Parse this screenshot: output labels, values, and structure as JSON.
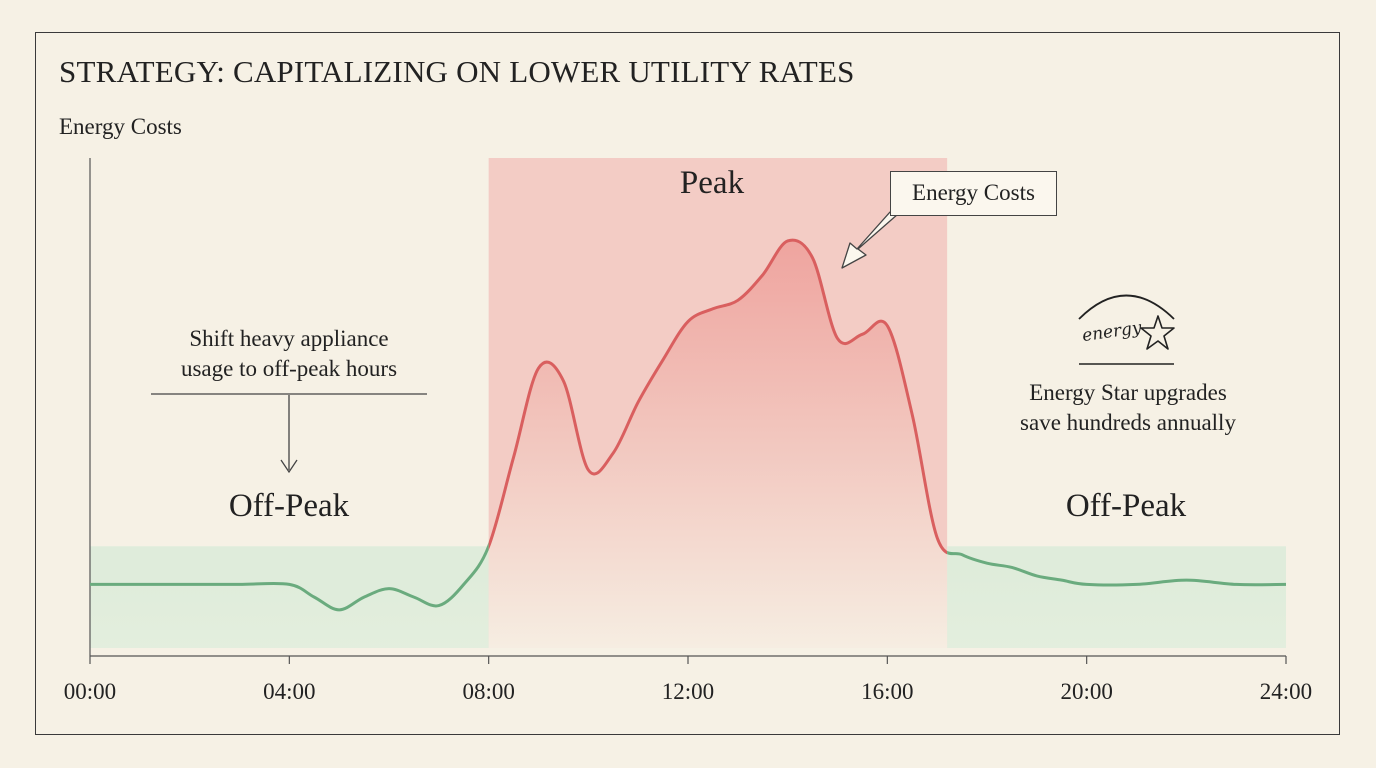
{
  "title": "STRATEGY: CAPITALIZING ON LOWER UTILITY RATES",
  "ylabel": "Energy Costs",
  "zones": {
    "offpeak_left": "Off-Peak",
    "peak": "Peak",
    "offpeak_right": "Off-Peak"
  },
  "notes": {
    "shift": [
      "Shift heavy appliance",
      "usage to off-peak hours"
    ],
    "energy_star": [
      "Energy Star upgrades",
      "save hundreds annually"
    ],
    "callout": "Energy Costs",
    "logo": "energy"
  },
  "colors": {
    "peak_line": "#d95f5f",
    "peak_fill": "#f2c5c0",
    "offpeak_line": "#6aab7e",
    "offpeak_fill": "#d9ebd8",
    "background": "#f6f1e5"
  },
  "chart_data": {
    "type": "area",
    "xlabel": "",
    "ylabel": "Energy Costs",
    "xticks": [
      "00:00",
      "04:00",
      "08:00",
      "12:00",
      "16:00",
      "20:00",
      "24:00"
    ],
    "xlim": [
      0,
      24
    ],
    "ylim": [
      0,
      10
    ],
    "peak_window": [
      8,
      17.2
    ],
    "offpeak_level": 2.4,
    "series": [
      {
        "x": [
          0,
          1,
          2,
          3,
          4,
          4.5,
          5,
          5.5,
          6,
          6.5,
          7,
          7.5,
          8,
          8.5,
          9,
          9.5,
          10,
          10.5,
          11,
          11.5,
          12,
          12.5,
          13,
          13.5,
          14,
          14.5,
          15,
          15.5,
          16,
          16.5,
          17,
          17.5,
          18,
          18.5,
          19,
          19.5,
          20,
          21,
          22,
          23,
          24
        ],
        "y": [
          1.5,
          1.5,
          1.5,
          1.5,
          1.5,
          1.2,
          0.9,
          1.2,
          1.4,
          1.2,
          1.0,
          1.5,
          2.4,
          4.5,
          6.6,
          6.3,
          4.2,
          4.6,
          5.8,
          6.8,
          7.7,
          8.0,
          8.2,
          8.8,
          9.6,
          9.2,
          7.3,
          7.4,
          7.6,
          5.5,
          2.6,
          2.2,
          2.0,
          1.9,
          1.7,
          1.6,
          1.5,
          1.5,
          1.6,
          1.5,
          1.5
        ]
      }
    ]
  }
}
